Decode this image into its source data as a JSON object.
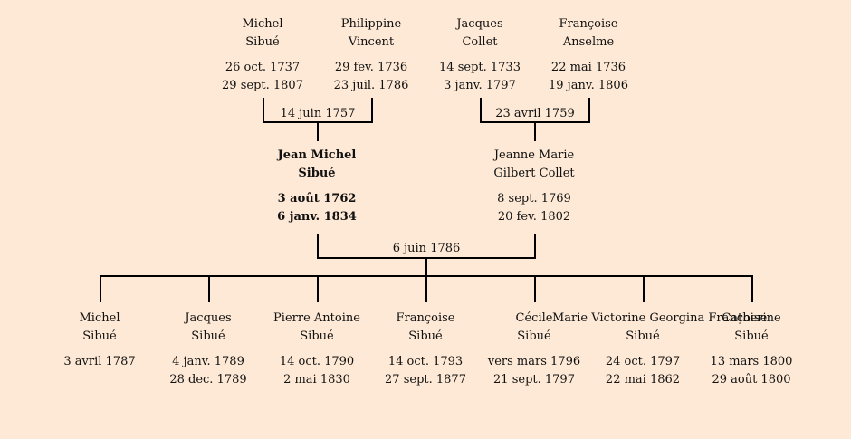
{
  "grandparents": [
    {
      "first": "Michel",
      "last": "Sibué",
      "birth": "26 oct. 1737",
      "death": "29 sept. 1807"
    },
    {
      "first": "Philippine",
      "last": "Vincent",
      "birth": "29 fev. 1736",
      "death": "23 juil. 1786"
    },
    {
      "first": "Jacques",
      "last": "Collet",
      "birth": "14 sept. 1733",
      "death": "3 janv. 1797"
    },
    {
      "first": "Françoise",
      "last": "Anselme",
      "birth": "22 mai 1736",
      "death": "19 janv. 1806"
    }
  ],
  "grandparent_marriages": [
    "14 juin 1757",
    "23 avril 1759"
  ],
  "parents": [
    {
      "first": "Jean Michel",
      "last": "Sibué",
      "birth": "3 août 1762",
      "death": "6 janv. 1834",
      "focus": true
    },
    {
      "first": "Jeanne Marie",
      "last": "Gilbert Collet",
      "birth": "8 sept. 1769",
      "death": "20 fev. 1802"
    }
  ],
  "parent_marriage": "6 juin 1786",
  "children": [
    {
      "first": "Michel",
      "last": "Sibué",
      "birth": "3 avril 1787",
      "death": ""
    },
    {
      "first": "Jacques",
      "last": "Sibué",
      "birth": "4 janv. 1789",
      "death": "28 dec. 1789"
    },
    {
      "first": "Pierre Antoine",
      "last": "Sibué",
      "birth": "14 oct. 1790",
      "death": "2 mai 1830"
    },
    {
      "first": "Françoise",
      "last": "Sibué",
      "birth": "14 oct. 1793",
      "death": "27 sept. 1877"
    },
    {
      "first": "Cécile",
      "last": "Sibué",
      "birth": "vers mars 1796",
      "death": "21 sept. 1797"
    },
    {
      "first": "Marie Victorine Georgina Françoise",
      "last": "Sibué",
      "birth": "24 oct. 1797",
      "death": "22 mai 1862"
    },
    {
      "first": "Catherine",
      "last": "Sibué",
      "birth": "13 mars 1800",
      "death": "29 août 1800"
    }
  ]
}
